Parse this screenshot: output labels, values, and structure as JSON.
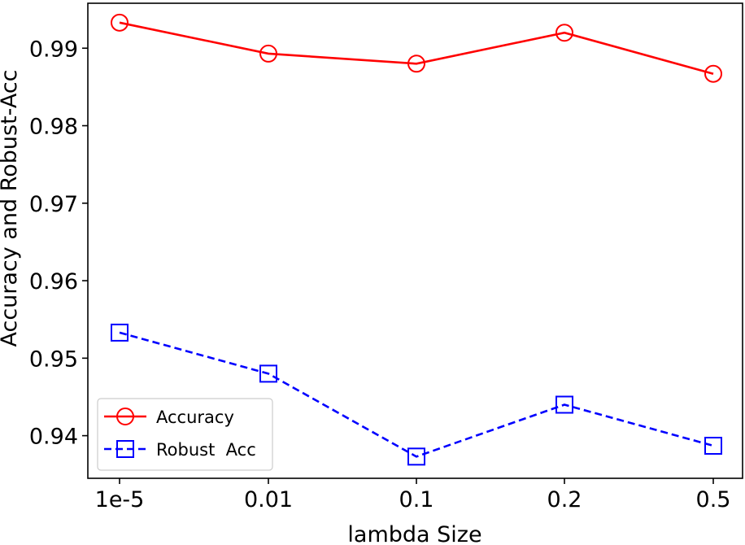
{
  "chart_data": {
    "type": "line",
    "title": "",
    "xlabel": "lambda Size",
    "ylabel": "Accuracy and Robust-Acc",
    "categories": [
      "1e-5",
      "0.01",
      "0.1",
      "0.2",
      "0.5"
    ],
    "ylim": [
      0.9345,
      0.9958
    ],
    "yticks": [
      "0.94",
      "0.95",
      "0.96",
      "0.97",
      "0.98",
      "0.99"
    ],
    "ytick_values": [
      0.94,
      0.95,
      0.96,
      0.97,
      0.98,
      0.99
    ],
    "grid": false,
    "legend_position": "lower-left",
    "series": [
      {
        "name": "Accuracy",
        "values": [
          0.9933,
          0.9893,
          0.988,
          0.992,
          0.9867
        ],
        "color": "#ff0000",
        "marker": "circle",
        "linestyle": "solid"
      },
      {
        "name": "Robust  Acc",
        "values": [
          0.9533,
          0.948,
          0.9373,
          0.944,
          0.9387
        ],
        "color": "#0000ff",
        "marker": "square",
        "linestyle": "dashed"
      }
    ]
  }
}
